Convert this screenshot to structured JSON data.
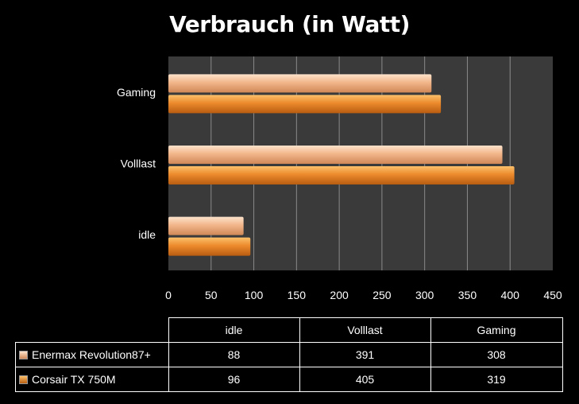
{
  "colors": {
    "background": "#000000",
    "plot_area": "#3a3a3a",
    "grid": "#8a8a8a",
    "text": "#ffffff",
    "series_light": "#f0b48a",
    "series_orange": "#e8802a"
  },
  "chart_data": {
    "type": "bar",
    "orientation": "horizontal",
    "title": "Verbrauch (in Watt)",
    "categories": [
      "idle",
      "Volllast",
      "Gaming"
    ],
    "series": [
      {
        "name": "Enermax Revolution87+",
        "values": [
          88,
          391,
          308
        ],
        "color": "#f0b48a"
      },
      {
        "name": "Corsair TX 750M",
        "values": [
          96,
          405,
          319
        ],
        "color": "#e8802a"
      }
    ],
    "xlim": [
      0,
      450
    ],
    "x_ticks": [
      "0",
      "50",
      "100",
      "150",
      "200",
      "250",
      "300",
      "350",
      "400",
      "450"
    ],
    "grid": true,
    "legend": "data table below chart"
  },
  "table": {
    "headers": [
      "idle",
      "Volllast",
      "Gaming"
    ],
    "rows": [
      {
        "name": "Enermax Revolution87+",
        "values": [
          "88",
          "391",
          "308"
        ]
      },
      {
        "name": "Corsair TX 750M",
        "values": [
          "96",
          "405",
          "319"
        ]
      }
    ]
  }
}
